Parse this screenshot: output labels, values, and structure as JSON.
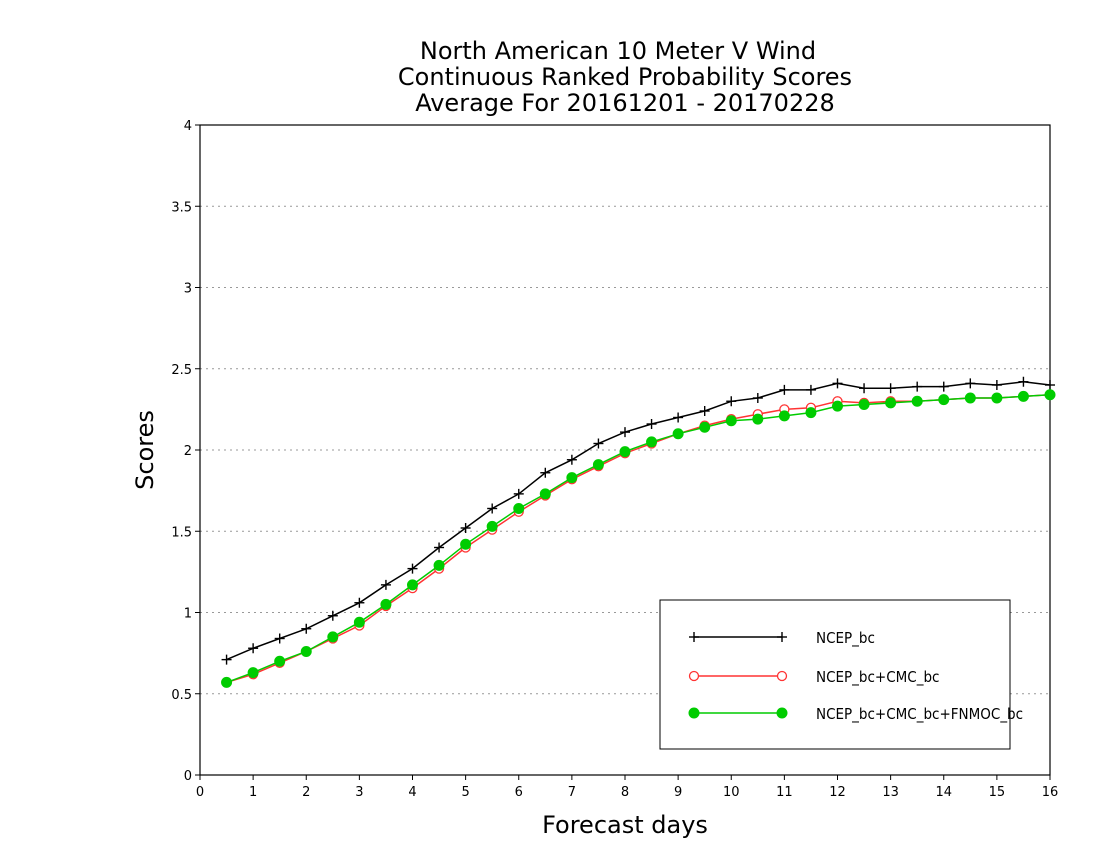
{
  "chart_data": {
    "type": "line",
    "title": [
      "North American 10 Meter V Wind",
      "Continuous Ranked Probability Scores",
      "Average For 20161201 - 20170228"
    ],
    "xlabel": "Forecast days",
    "ylabel": "Scores",
    "xlim": [
      0,
      16
    ],
    "ylim": [
      0,
      4
    ],
    "xticks": [
      0,
      1,
      2,
      3,
      4,
      5,
      6,
      7,
      8,
      9,
      10,
      11,
      12,
      13,
      14,
      15,
      16
    ],
    "yticks": [
      0,
      0.5,
      1,
      1.5,
      2,
      2.5,
      3,
      3.5,
      4
    ],
    "grid": "horizontal-dotted",
    "legend_position": "bottom-right",
    "x": [
      0.5,
      1,
      1.5,
      2,
      2.5,
      3,
      3.5,
      4,
      4.5,
      5,
      5.5,
      6,
      6.5,
      7,
      7.5,
      8,
      8.5,
      9,
      9.5,
      10,
      10.5,
      11,
      11.5,
      12,
      12.5,
      13,
      13.5,
      14,
      14.5,
      15,
      15.5,
      16
    ],
    "series": [
      {
        "name": "NCEP_bc",
        "color": "#000000",
        "marker": "plus",
        "values": [
          0.71,
          0.78,
          0.84,
          0.9,
          0.98,
          1.06,
          1.17,
          1.27,
          1.4,
          1.52,
          1.64,
          1.73,
          1.86,
          1.94,
          2.04,
          2.11,
          2.16,
          2.2,
          2.24,
          2.3,
          2.32,
          2.37,
          2.37,
          2.41,
          2.38,
          2.38,
          2.39,
          2.39,
          2.41,
          2.4,
          2.42,
          2.4
        ]
      },
      {
        "name": "NCEP_bc+CMC_bc",
        "color": "#ff3333",
        "marker": "circle-open",
        "values": [
          0.57,
          0.62,
          0.69,
          0.76,
          0.84,
          0.92,
          1.04,
          1.15,
          1.27,
          1.4,
          1.51,
          1.62,
          1.72,
          1.82,
          1.9,
          1.98,
          2.04,
          2.1,
          2.15,
          2.19,
          2.22,
          2.25,
          2.26,
          2.3,
          2.29,
          2.3,
          2.3,
          2.31,
          2.32,
          2.32,
          2.33,
          2.34
        ]
      },
      {
        "name": "NCEP_bc+CMC_bc+FNMOC_bc",
        "color": "#00cc00",
        "marker": "circle-filled",
        "values": [
          0.57,
          0.63,
          0.7,
          0.76,
          0.85,
          0.94,
          1.05,
          1.17,
          1.29,
          1.42,
          1.53,
          1.64,
          1.73,
          1.83,
          1.91,
          1.99,
          2.05,
          2.1,
          2.14,
          2.18,
          2.19,
          2.21,
          2.23,
          2.27,
          2.28,
          2.29,
          2.3,
          2.31,
          2.32,
          2.32,
          2.33,
          2.34
        ]
      }
    ]
  }
}
